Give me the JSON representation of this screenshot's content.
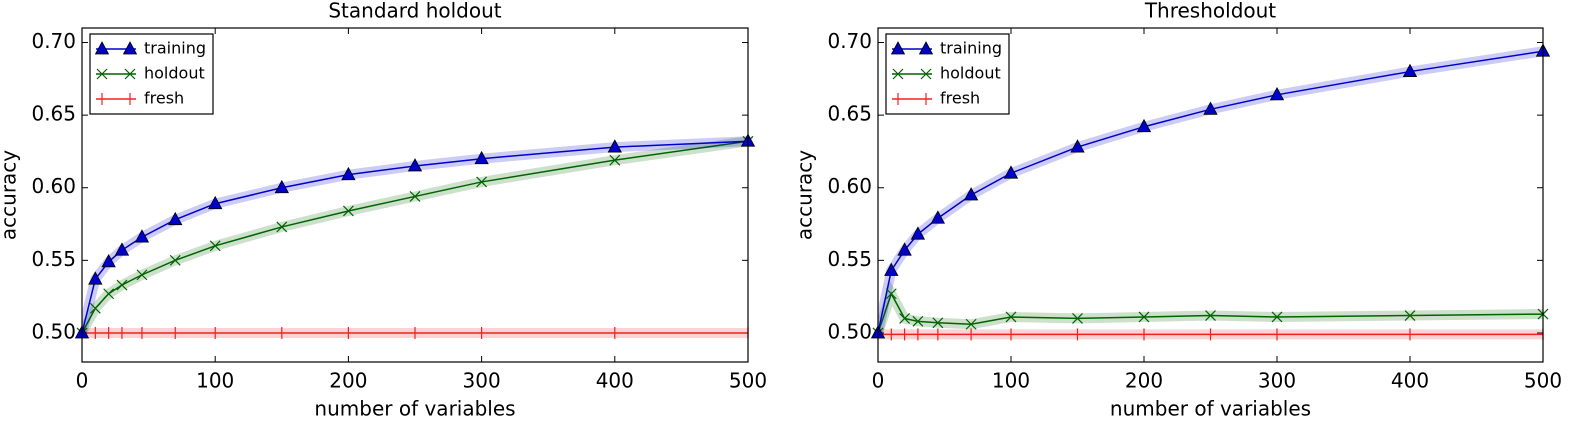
{
  "chart_data": [
    {
      "type": "line",
      "title": "Standard holdout",
      "x_label": "number of variables",
      "y_label": "accuracy",
      "x": [
        0,
        10,
        20,
        30,
        45,
        70,
        100,
        150,
        200,
        250,
        300,
        400,
        500
      ],
      "series": [
        {
          "name": "training",
          "color": "#0000cc",
          "marker": "triangle",
          "values": [
            0.5,
            0.537,
            0.549,
            0.557,
            0.566,
            0.578,
            0.589,
            0.6,
            0.609,
            0.615,
            0.62,
            0.628,
            0.632
          ]
        },
        {
          "name": "holdout",
          "color": "#006400",
          "marker": "x",
          "values": [
            0.5,
            0.517,
            0.527,
            0.533,
            0.54,
            0.55,
            0.56,
            0.573,
            0.584,
            0.594,
            0.604,
            0.619,
            0.632
          ]
        },
        {
          "name": "fresh",
          "color": "#ee2222",
          "marker": "vline",
          "values": [
            0.5,
            0.5,
            0.5,
            0.5,
            0.5,
            0.5,
            0.5,
            0.5,
            0.5,
            0.5,
            0.5,
            0.5,
            0.5
          ]
        }
      ],
      "xlim": [
        0,
        500
      ],
      "ylim": [
        0.48,
        0.71
      ],
      "xticks": [
        0,
        100,
        200,
        300,
        400,
        500
      ],
      "yticks": [
        {
          "value": 0.5,
          "label": "0.50"
        },
        {
          "value": 0.55,
          "label": "0.55"
        },
        {
          "value": 0.6,
          "label": "0.60"
        },
        {
          "value": 0.65,
          "label": "0.65"
        },
        {
          "value": 0.7,
          "label": "0.70"
        }
      ],
      "legend": "upper left"
    },
    {
      "type": "line",
      "title": "Thresholdout",
      "x_label": "number of variables",
      "y_label": "accuracy",
      "x": [
        0,
        10,
        20,
        30,
        45,
        70,
        100,
        150,
        200,
        250,
        300,
        400,
        500
      ],
      "series": [
        {
          "name": "training",
          "color": "#0000cc",
          "marker": "triangle",
          "values": [
            0.5,
            0.543,
            0.557,
            0.568,
            0.579,
            0.595,
            0.61,
            0.628,
            0.642,
            0.654,
            0.664,
            0.68,
            0.694
          ]
        },
        {
          "name": "holdout",
          "color": "#006400",
          "marker": "x",
          "values": [
            0.5,
            0.527,
            0.51,
            0.508,
            0.507,
            0.506,
            0.511,
            0.51,
            0.511,
            0.512,
            0.511,
            0.512,
            0.513
          ]
        },
        {
          "name": "fresh",
          "color": "#ee2222",
          "marker": "vline",
          "values": [
            0.499,
            0.499,
            0.499,
            0.499,
            0.499,
            0.499,
            0.499,
            0.499,
            0.499,
            0.499,
            0.499,
            0.499,
            0.499
          ]
        }
      ],
      "xlim": [
        0,
        500
      ],
      "ylim": [
        0.48,
        0.71
      ],
      "xticks": [
        0,
        100,
        200,
        300,
        400,
        500
      ],
      "yticks": [
        {
          "value": 0.5,
          "label": "0.50"
        },
        {
          "value": 0.55,
          "label": "0.55"
        },
        {
          "value": 0.6,
          "label": "0.60"
        },
        {
          "value": 0.65,
          "label": "0.65"
        },
        {
          "value": 0.7,
          "label": "0.70"
        }
      ],
      "legend": "upper left"
    }
  ]
}
